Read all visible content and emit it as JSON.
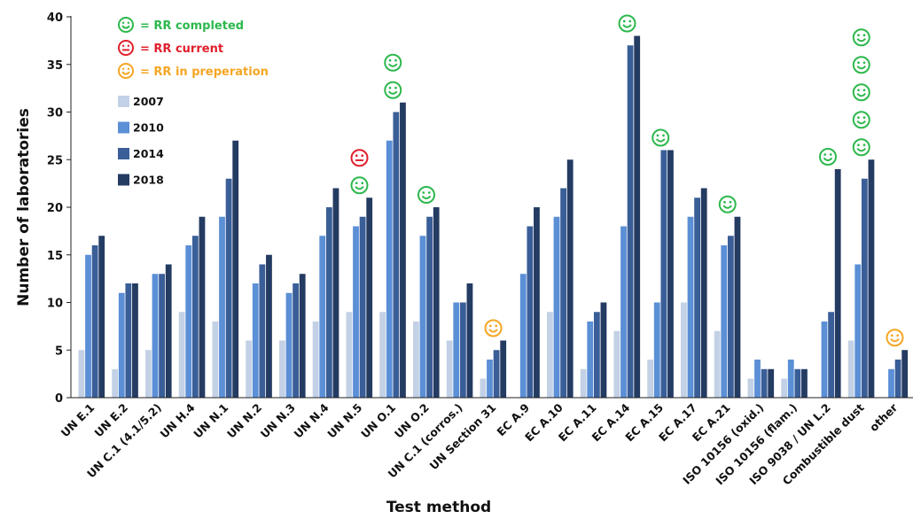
{
  "chart_data": {
    "type": "bar",
    "xlabel": "Test method",
    "ylabel": "Number of laboratories",
    "ylim": [
      0,
      40
    ],
    "yticks": [
      0,
      5,
      10,
      15,
      20,
      25,
      30,
      35,
      40
    ],
    "grid": false,
    "legend_position": "top-left",
    "categories": [
      "UN E.1",
      "UN E.2",
      "UN C.1 (4.1/5.2)",
      "UN H.4",
      "UN N.1",
      "UN N.2",
      "UN N.3",
      "UN N.4",
      "UN N.5",
      "UN O.1",
      "UN O.2",
      "UN C.1 (corros.)",
      "UN Section 31",
      "EC A.9",
      "EC A.10",
      "EC A.11",
      "EC A.14",
      "EC A.15",
      "EC A.17",
      "EC A.21",
      "ISO 10156 (oxid.)",
      "ISO 10156 (flam.)",
      "ISO 9038 / UN L.2",
      "Combustible dust",
      "other"
    ],
    "series": [
      {
        "name": "2007",
        "color": "#c3d1e6",
        "values": [
          5,
          3,
          5,
          9,
          8,
          6,
          6,
          8,
          9,
          9,
          8,
          6,
          2,
          0,
          9,
          3,
          7,
          4,
          10,
          7,
          2,
          2,
          0,
          6,
          0
        ]
      },
      {
        "name": "2010",
        "color": "#5b8fd6",
        "values": [
          15,
          11,
          13,
          16,
          19,
          12,
          11,
          17,
          18,
          27,
          17,
          10,
          4,
          13,
          19,
          8,
          18,
          10,
          19,
          16,
          4,
          4,
          8,
          14,
          3
        ]
      },
      {
        "name": "2014",
        "color": "#3a5e97",
        "values": [
          16,
          12,
          13,
          17,
          23,
          14,
          12,
          20,
          19,
          30,
          19,
          10,
          5,
          18,
          22,
          9,
          37,
          26,
          21,
          17,
          3,
          3,
          9,
          23,
          4
        ]
      },
      {
        "name": "2018",
        "color": "#243b62",
        "values": [
          17,
          12,
          14,
          19,
          27,
          15,
          13,
          22,
          21,
          31,
          20,
          12,
          6,
          20,
          25,
          10,
          38,
          26,
          22,
          19,
          3,
          3,
          24,
          25,
          5
        ]
      }
    ],
    "status_legend": [
      {
        "status": "completed",
        "icon": "smile-icon",
        "label": "= RR completed",
        "color": "#2db84d"
      },
      {
        "status": "current",
        "icon": "neutral-face-icon",
        "label": "= RR current",
        "color": "#e0202c"
      },
      {
        "status": "preparation",
        "icon": "smile-icon",
        "label": "= RR in preperation",
        "color": "#f5a623"
      }
    ],
    "status_markers": [
      {
        "category": "UN N.5",
        "stack": [
          "completed",
          "current"
        ]
      },
      {
        "category": "UN O.1",
        "stack": [
          "completed",
          "completed"
        ]
      },
      {
        "category": "UN O.2",
        "stack": [
          "completed"
        ]
      },
      {
        "category": "UN Section 31",
        "stack": [
          "preparation"
        ]
      },
      {
        "category": "EC A.14",
        "stack": [
          "completed"
        ]
      },
      {
        "category": "EC A.15",
        "stack": [
          "completed"
        ]
      },
      {
        "category": "EC A.21",
        "stack": [
          "completed"
        ]
      },
      {
        "category": "ISO 9038 / UN L.2",
        "stack": [
          "completed"
        ]
      },
      {
        "category": "Combustible dust",
        "stack": [
          "completed",
          "completed",
          "completed",
          "completed",
          "completed"
        ]
      },
      {
        "category": "other",
        "stack": [
          "preparation"
        ]
      }
    ]
  }
}
